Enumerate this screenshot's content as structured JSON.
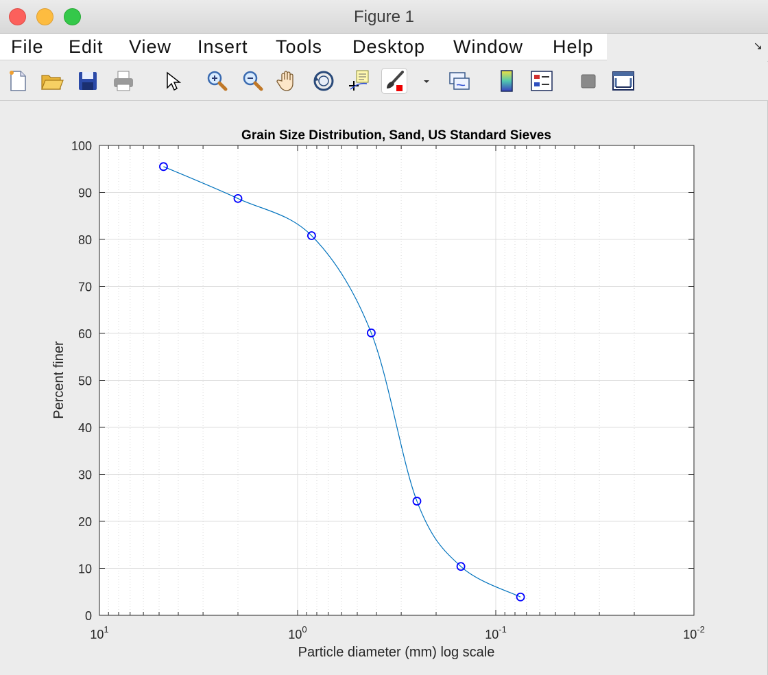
{
  "window": {
    "title": "Figure 1"
  },
  "menu": {
    "items": [
      "File",
      "Edit",
      "View",
      "Insert",
      "Tools",
      "Desktop",
      "Window",
      "Help"
    ]
  },
  "toolbar": {
    "buttons": [
      "new-figure-icon",
      "open-file-icon",
      "save-icon",
      "print-icon",
      "edit-plot-icon",
      "zoom-in-icon",
      "zoom-out-icon",
      "pan-icon",
      "rotate-3d-icon",
      "data-cursor-icon",
      "brush-icon",
      "brush-dropdown-icon",
      "link-plot-icon",
      "insert-colorbar-icon",
      "insert-legend-icon",
      "hide-plot-tools-icon",
      "show-plot-tools-icon"
    ]
  },
  "chart_data": {
    "type": "line",
    "title": "Grain Size Distribution, Sand, US Standard Sieves",
    "xlabel": "Particle diameter (mm) log scale",
    "ylabel": "Percent finer",
    "xscale": "log",
    "xdir": "reverse",
    "xlim": [
      10,
      0.01
    ],
    "ylim": [
      0,
      100
    ],
    "xticks": [
      {
        "base": "10",
        "exp": "1"
      },
      {
        "base": "10",
        "exp": "0"
      },
      {
        "base": "10",
        "exp": "-1"
      },
      {
        "base": "10",
        "exp": "-2"
      }
    ],
    "yticks": [
      "0",
      "10",
      "20",
      "30",
      "40",
      "50",
      "60",
      "70",
      "80",
      "90",
      "100"
    ],
    "grid": true,
    "series": [
      {
        "color": "#0072bd",
        "marker": "circle",
        "marker_color": "#0000ff",
        "x": [
          4.75,
          2.0,
          0.85,
          0.425,
          0.25,
          0.15,
          0.075
        ],
        "y": [
          95.5,
          88.7,
          80.8,
          60.1,
          24.3,
          10.4,
          3.9
        ]
      }
    ]
  }
}
